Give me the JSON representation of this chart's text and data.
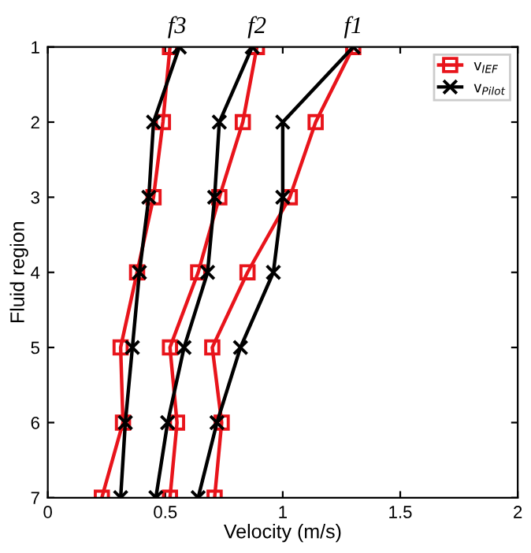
{
  "chart_data": {
    "type": "line",
    "xlabel": "Velocity (m/s)",
    "ylabel": "Fluid region",
    "xlim": [
      0,
      2
    ],
    "xticks": [
      0,
      0.5,
      1,
      1.5,
      2
    ],
    "ylim": [
      7,
      1
    ],
    "yticks": [
      1,
      2,
      3,
      4,
      5,
      6,
      7
    ],
    "grid": false,
    "legend": "top right",
    "line_style": "solid",
    "series": [
      {
        "name": "v$_{IEF}$",
        "color": "#e8141b",
        "marker": "square",
        "x": [
          1.3,
          1.14,
          1.03,
          0.85,
          0.7,
          0.74,
          0.71
        ],
        "values": [
          1,
          2,
          3,
          4,
          5,
          6,
          7
        ]
      },
      {
        "name": "v$_{Pilot}$",
        "color": "#000000",
        "marker": "cross",
        "x": [
          1.3,
          1.0,
          1.0,
          0.96,
          0.82,
          0.72,
          0.64
        ],
        "values": [
          1,
          2,
          3,
          4,
          5,
          6,
          7
        ]
      },
      {
        "color": "#e8141b",
        "marker": "square",
        "x": [
          0.89,
          0.83,
          0.73,
          0.64,
          0.52,
          0.55,
          0.52
        ],
        "values": [
          1,
          2,
          3,
          4,
          5,
          6,
          7
        ]
      },
      {
        "color": "#000000",
        "marker": "cross",
        "x": [
          0.87,
          0.73,
          0.71,
          0.68,
          0.58,
          0.51,
          0.46
        ],
        "values": [
          1,
          2,
          3,
          4,
          5,
          6,
          7
        ]
      },
      {
        "color": "#e8141b",
        "marker": "square",
        "x": [
          0.52,
          0.49,
          0.45,
          0.38,
          0.31,
          0.32,
          0.23
        ],
        "values": [
          1,
          2,
          3,
          4,
          5,
          6,
          7
        ]
      },
      {
        "color": "#000000",
        "marker": "cross",
        "x": [
          0.56,
          0.45,
          0.43,
          0.39,
          0.36,
          0.33,
          0.31
        ],
        "values": [
          1,
          2,
          3,
          4,
          5,
          6,
          7
        ]
      }
    ],
    "annotations": [
      {
        "text": "f1",
        "x": 1.3,
        "y": 1
      },
      {
        "text": "f2",
        "x": 0.89,
        "y": 1
      },
      {
        "text": "f3",
        "x": 0.55,
        "y": 1
      }
    ]
  }
}
